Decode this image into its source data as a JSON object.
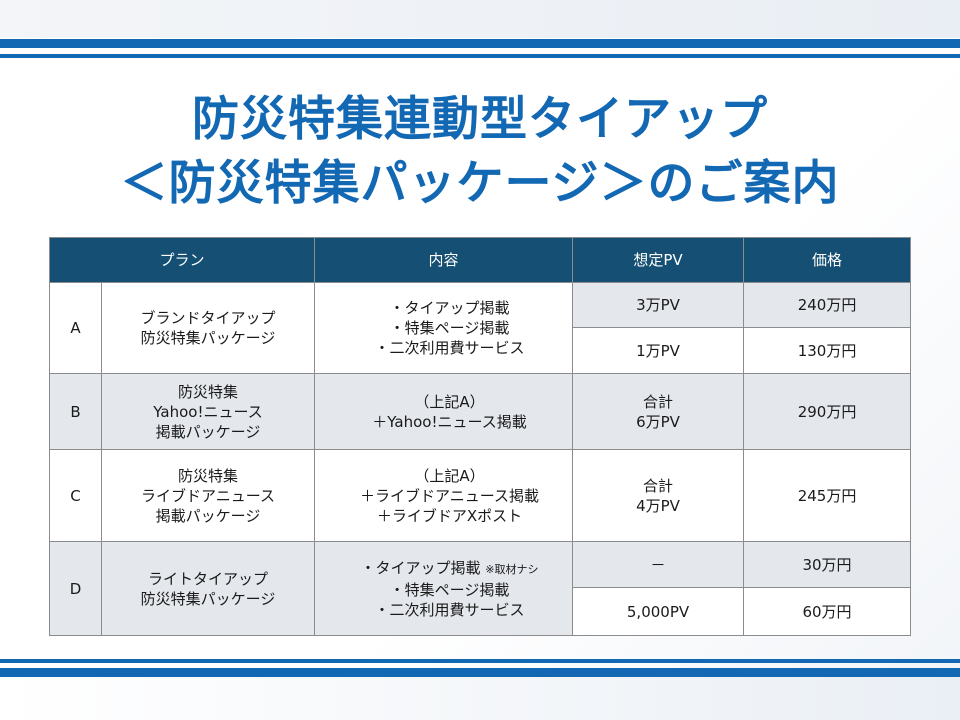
{
  "title": {
    "line1": "防災特集連動型タイアップ",
    "line2": "＜防災特集パッケージ＞のご案内"
  },
  "table": {
    "headers": {
      "plan": "プラン",
      "content": "内容",
      "pv": "想定PV",
      "price": "価格"
    },
    "rows": [
      {
        "id": "A",
        "name": [
          "ブランドタイアップ",
          "防災特集パッケージ"
        ],
        "content": [
          "・タイアップ掲載",
          "・特集ページ掲載",
          "・二次利用費サービス"
        ],
        "options": [
          {
            "pv": "3万PV",
            "price": "240万円"
          },
          {
            "pv": "1万PV",
            "price": "130万円"
          }
        ]
      },
      {
        "id": "B",
        "name": [
          "防災特集",
          "Yahoo!ニュース",
          "掲載パッケージ"
        ],
        "content": [
          "（上記A）",
          "＋Yahoo!ニュース掲載"
        ],
        "pv": [
          "合計",
          "6万PV"
        ],
        "price": "290万円"
      },
      {
        "id": "C",
        "name": [
          "防災特集",
          "ライブドアニュース",
          "掲載パッケージ"
        ],
        "content": [
          "（上記A）",
          "＋ライブドアニュース掲載",
          "＋ライブドアXポスト"
        ],
        "pv": [
          "合計",
          "4万PV"
        ],
        "price": "245万円"
      },
      {
        "id": "D",
        "name": [
          "ライトタイアップ",
          "防災特集パッケージ"
        ],
        "content": [
          "・タイアップ掲載",
          "・特集ページ掲載",
          "・二次利用費サービス"
        ],
        "content_note": "※取材ナシ",
        "options": [
          {
            "pv": "－",
            "price": "30万円"
          },
          {
            "pv": "5,000PV",
            "price": "60万円"
          }
        ]
      }
    ]
  }
}
